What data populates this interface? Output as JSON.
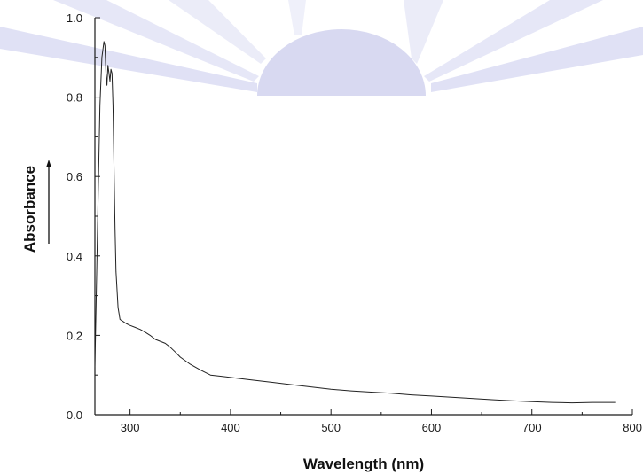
{
  "chart_data": {
    "type": "line",
    "title": "",
    "xlabel": "Wavelength (nm)",
    "ylabel": "Absorbance",
    "xlim": [
      265,
      800
    ],
    "ylim": [
      0.0,
      1.0
    ],
    "x_ticks": [
      300,
      400,
      500,
      600,
      700,
      800
    ],
    "x_tick_labels": [
      "300",
      "400",
      "500",
      "600",
      "700",
      "800"
    ],
    "y_ticks": [
      0.0,
      0.2,
      0.4,
      0.6,
      0.8,
      1.0
    ],
    "y_tick_labels": [
      "0.0",
      "0.2",
      "0.4",
      "0.6",
      "0.8",
      "1.0"
    ],
    "grid": false,
    "legend": "none",
    "series": [
      {
        "x": [
          265,
          268,
          270,
          272,
          274,
          275,
          276,
          277,
          278,
          279,
          280,
          281,
          282,
          283,
          284,
          285,
          286,
          288,
          290,
          293,
          296,
          300,
          305,
          310,
          315,
          320,
          325,
          330,
          335,
          340,
          345,
          350,
          360,
          370,
          380,
          390,
          400,
          420,
          440,
          460,
          480,
          500,
          520,
          540,
          560,
          580,
          600,
          620,
          640,
          660,
          680,
          700,
          720,
          740,
          760,
          783
        ],
        "values": [
          0.12,
          0.52,
          0.78,
          0.9,
          0.94,
          0.93,
          0.86,
          0.83,
          0.88,
          0.86,
          0.84,
          0.87,
          0.86,
          0.78,
          0.63,
          0.47,
          0.36,
          0.27,
          0.24,
          0.235,
          0.23,
          0.225,
          0.22,
          0.215,
          0.208,
          0.2,
          0.19,
          0.185,
          0.18,
          0.17,
          0.158,
          0.145,
          0.127,
          0.113,
          0.1,
          0.097,
          0.094,
          0.088,
          0.082,
          0.076,
          0.07,
          0.064,
          0.06,
          0.057,
          0.054,
          0.05,
          0.047,
          0.044,
          0.041,
          0.038,
          0.035,
          0.033,
          0.031,
          0.03,
          0.031,
          0.031
        ],
        "color": "#222222"
      }
    ],
    "line_color": "#222222",
    "axis_color": "#1a1a1a",
    "watermark_color": "#b9bbe6"
  }
}
